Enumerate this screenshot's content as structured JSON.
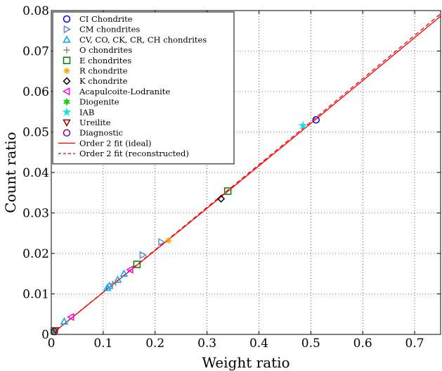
{
  "chart_data": {
    "type": "scatter",
    "xlabel": "Weight ratio",
    "ylabel": "Count ratio",
    "xlim": [
      0,
      0.75
    ],
    "ylim": [
      0,
      0.08
    ],
    "x_ticks": [
      "0",
      "0.1",
      "0.2",
      "0.3",
      "0.4",
      "0.5",
      "0.6",
      "0.7"
    ],
    "y_ticks": [
      "0",
      "0.01",
      "0.02",
      "0.03",
      "0.04",
      "0.05",
      "0.06",
      "0.07",
      "0.08"
    ],
    "x_tick_values": [
      0,
      0.1,
      0.2,
      0.3,
      0.4,
      0.5,
      0.6,
      0.7
    ],
    "y_tick_values": [
      0,
      0.01,
      0.02,
      0.03,
      0.04,
      0.05,
      0.06,
      0.07,
      0.08
    ],
    "grid": true,
    "legend_position": "top-left",
    "series": [
      {
        "name": "CI Chondrite",
        "marker": "circle",
        "color": "#0000ff",
        "x": [
          0.51
        ],
        "y": [
          0.053
        ]
      },
      {
        "name": "CM chondrites",
        "marker": "triangle-right",
        "color": "#6a8cc8",
        "x": [
          0.176,
          0.212
        ],
        "y": [
          0.0196,
          0.0228
        ]
      },
      {
        "name": "CV, CO, CK, CR, CH chondrites",
        "marker": "triangle-up",
        "color": "#00a8ff",
        "x": [
          0.025,
          0.108,
          0.112,
          0.128,
          0.14
        ],
        "y": [
          0.0032,
          0.0115,
          0.012,
          0.0135,
          0.015
        ]
      },
      {
        "name": "O chondrites",
        "marker": "plus",
        "color": "#888888",
        "x": [
          0.118,
          0.124
        ],
        "y": [
          0.0125,
          0.0128
        ]
      },
      {
        "name": "E chondrites",
        "marker": "square",
        "color": "#008000",
        "x": [
          0.165,
          0.34
        ],
        "y": [
          0.0173,
          0.0354
        ]
      },
      {
        "name": "R chondrite",
        "marker": "asterisk",
        "color": "#ffa500",
        "x": [
          0.226
        ],
        "y": [
          0.0232
        ]
      },
      {
        "name": "K chondrite",
        "marker": "diamond",
        "color": "#000000",
        "x": [
          0.327
        ],
        "y": [
          0.0335
        ]
      },
      {
        "name": "Acapulcoite-Lodranite",
        "marker": "triangle-left",
        "color": "#ff00ff",
        "x": [
          0.038,
          0.152
        ],
        "y": [
          0.0043,
          0.016
        ]
      },
      {
        "name": "Diogenite",
        "marker": "hexagram",
        "color": "#22cc22",
        "x": [
          0.004
        ],
        "y": [
          0.0008
        ]
      },
      {
        "name": "IAB",
        "marker": "pentagram",
        "color": "#00e5e5",
        "x": [
          0.485
        ],
        "y": [
          0.0516
        ]
      },
      {
        "name": "Ureilite",
        "marker": "triangle-down",
        "color": "#8b0000",
        "x": [
          0.008
        ],
        "y": [
          0.001
        ]
      },
      {
        "name": "Diagnostic",
        "marker": "circle",
        "color": "#800080",
        "x": [
          0.006
        ],
        "y": [
          0.0007
        ]
      }
    ],
    "fits": [
      {
        "name": "Order 2 fit (ideal)",
        "style": "solid",
        "color": "#ff0000",
        "x": [
          0,
          0.25,
          0.5,
          0.75
        ],
        "y": [
          0,
          0.0259,
          0.0521,
          0.0786
        ]
      },
      {
        "name": "Order 2 fit (reconstructed)",
        "style": "dashed",
        "color": "#ff0000",
        "x": [
          0,
          0.25,
          0.5,
          0.75
        ],
        "y": [
          0,
          0.0261,
          0.0525,
          0.0792
        ]
      }
    ]
  }
}
